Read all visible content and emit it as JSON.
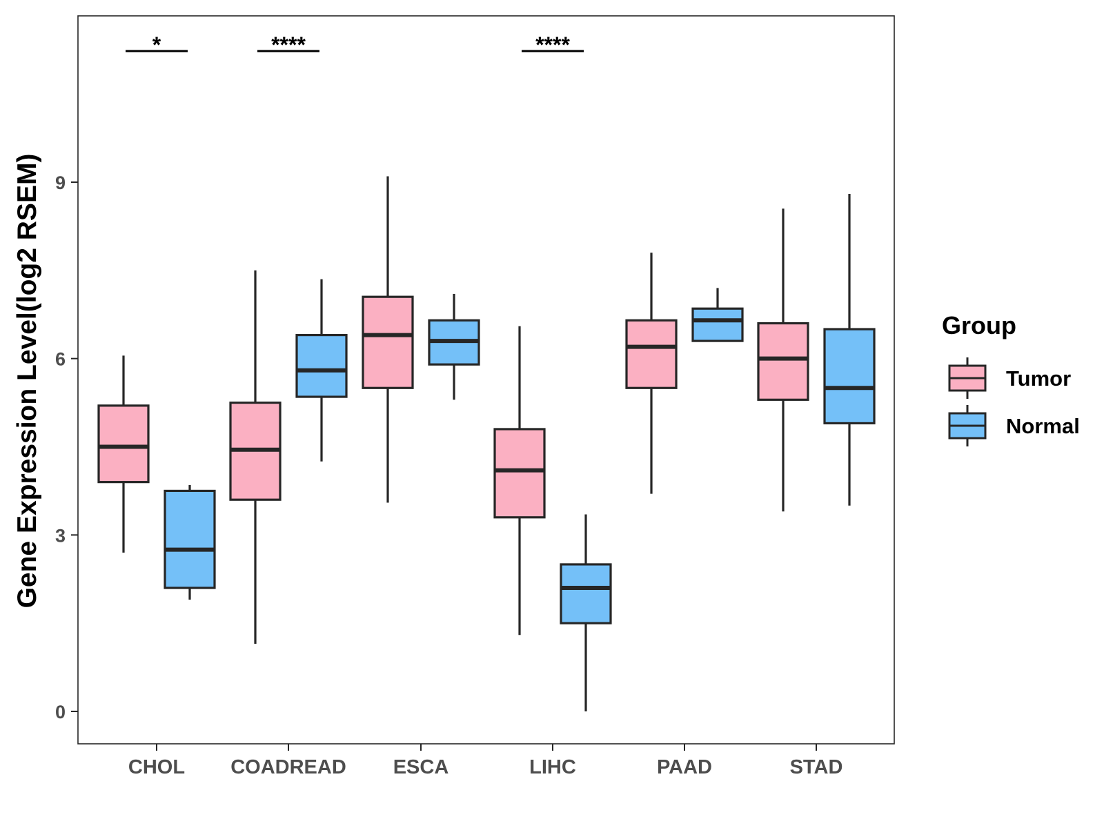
{
  "chart_data": {
    "type": "boxplot",
    "title": "",
    "xlabel": "",
    "ylabel": "Gene Expression Level(log2 RSEM)",
    "ylim": [
      -0.55,
      11.85
    ],
    "yticks": [
      0,
      3,
      6,
      9
    ],
    "categories": [
      "CHOL",
      "COADREAD",
      "ESCA",
      "LIHC",
      "PAAD",
      "STAD"
    ],
    "legend": {
      "title": "Group",
      "position": "right",
      "entries": [
        "Tumor",
        "Normal"
      ]
    },
    "colors": {
      "Tumor": "#fbb0c2",
      "Normal": "#74c0f8",
      "outline": "#262626"
    },
    "series": [
      {
        "name": "Tumor",
        "boxes": [
          {
            "category": "CHOL",
            "min": 2.7,
            "q1": 3.9,
            "median": 4.5,
            "q3": 5.2,
            "max": 6.05
          },
          {
            "category": "COADREAD",
            "min": 1.15,
            "q1": 3.6,
            "median": 4.45,
            "q3": 5.25,
            "max": 7.5
          },
          {
            "category": "ESCA",
            "min": 3.55,
            "q1": 5.5,
            "median": 6.4,
            "q3": 7.05,
            "max": 9.1
          },
          {
            "category": "LIHC",
            "min": 1.3,
            "q1": 3.3,
            "median": 4.1,
            "q3": 4.8,
            "max": 6.55
          },
          {
            "category": "PAAD",
            "min": 3.7,
            "q1": 5.5,
            "median": 6.2,
            "q3": 6.65,
            "max": 7.8
          },
          {
            "category": "STAD",
            "min": 3.4,
            "q1": 5.3,
            "median": 6.0,
            "q3": 6.6,
            "max": 8.55
          }
        ]
      },
      {
        "name": "Normal",
        "boxes": [
          {
            "category": "CHOL",
            "min": 1.9,
            "q1": 2.1,
            "median": 2.75,
            "q3": 3.75,
            "max": 3.85
          },
          {
            "category": "COADREAD",
            "min": 4.25,
            "q1": 5.35,
            "median": 5.8,
            "q3": 6.4,
            "max": 7.35
          },
          {
            "category": "ESCA",
            "min": 5.3,
            "q1": 5.9,
            "median": 6.3,
            "q3": 6.65,
            "max": 7.1
          },
          {
            "category": "LIHC",
            "min": 0.0,
            "q1": 1.5,
            "median": 2.1,
            "q3": 2.5,
            "max": 3.35
          },
          {
            "category": "PAAD",
            "min": 6.3,
            "q1": 6.3,
            "median": 6.65,
            "q3": 6.85,
            "max": 7.2
          },
          {
            "category": "STAD",
            "min": 3.5,
            "q1": 4.9,
            "median": 5.5,
            "q3": 6.5,
            "max": 8.8
          }
        ]
      }
    ],
    "annotations": [
      {
        "category": "CHOL",
        "label": "*"
      },
      {
        "category": "COADREAD",
        "label": "****"
      },
      {
        "category": "LIHC",
        "label": "****"
      }
    ]
  }
}
